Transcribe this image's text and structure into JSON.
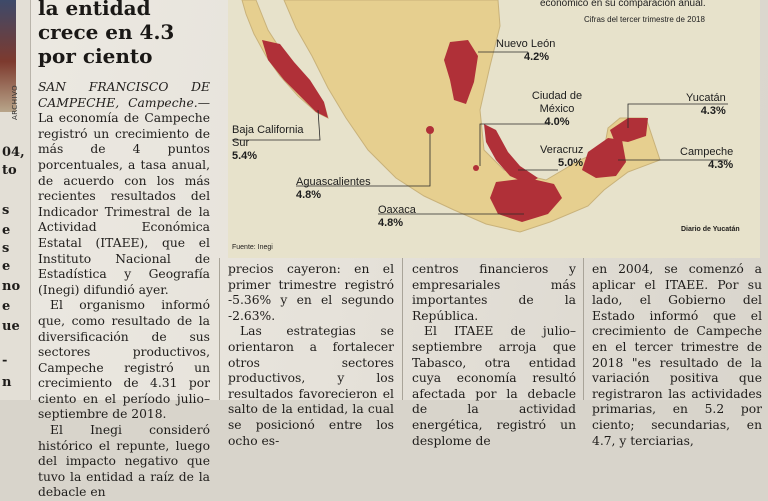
{
  "article": {
    "headline": "la entidad crece en 4.3 por ciento",
    "dateline": "SAN FRANCISCO DE CAMPECHE, Campeche.—",
    "lead": "La economía de Campeche registró un crecimiento de más de 4 puntos porcentuales, a tasa anual, de acuerdo con los más recientes resultados del Indicador Trimestral de la Actividad Económica Estatal (ITAEE), que el Instituto Nacional de Estadística y Geografía (Inegi) difundió ayer.",
    "p2": "El organismo informó que, como resultado de la diversificación de sus sectores productivos, Campeche registró un crecimiento de 4.31 por ciento en el período julio–septiembre de 2018.",
    "p3": "El Inegi consideró histórico el repunte, luego del impacto negativo que tuvo la entidad a raíz de la debacle en",
    "col2": "precios cayeron: en el primer trimestre registró -5.36% y en el segundo -2.63%.",
    "col2_p2": "Las estrategias se orientaron a fortalecer otros sectores productivos, y los resultados favorecieron el salto de la entidad, la cual se posicionó entre los ocho es-",
    "col3": "centros financieros y empresariales más importantes de la República.",
    "col3_p2": "El ITAEE de julio–septiembre arroja que Tabasco, otra entidad cuya economía resultó afectada por la debacle de la actividad energética, registró un desplome de",
    "col4": "en 2004, se comenzó a aplicar el ITAEE. Por su lado, el Gobierno del Estado informó que el crecimiento de Campeche en el tercer trimestre de 2018 \"es resultado de la variación positiva que registraron las actividades primarias, en 5.2 por ciento; secundarias, en 4.7, y terciarias,"
  },
  "leftstrip": {
    "archivo": "ARCHIVO",
    "frags": [
      "04,",
      "to",
      "s",
      "e",
      "s",
      "e",
      "no",
      "e",
      "ue",
      "-",
      "n"
    ]
  },
  "map": {
    "subtitle": "económico en su comparación anual.",
    "period": "Cifras del tercer trimestre de 2018",
    "source": "Fuente: Inegi",
    "credit": "Diario de Yucatán",
    "highlight_color": "#b03038",
    "land_color": "#e6cf8f",
    "labels": [
      {
        "name": "Nuevo León",
        "value": "4.2%"
      },
      {
        "name": "Ciudad de México",
        "value": "4.0%"
      },
      {
        "name": "Yucatán",
        "value": "4.3%"
      },
      {
        "name": "Baja California Sur",
        "value": "5.4%"
      },
      {
        "name": "Veracruz",
        "value": "5.0%"
      },
      {
        "name": "Campeche",
        "value": "4.3%"
      },
      {
        "name": "Aguascalientes",
        "value": "4.8%"
      },
      {
        "name": "Oaxaca",
        "value": "4.8%"
      }
    ]
  }
}
